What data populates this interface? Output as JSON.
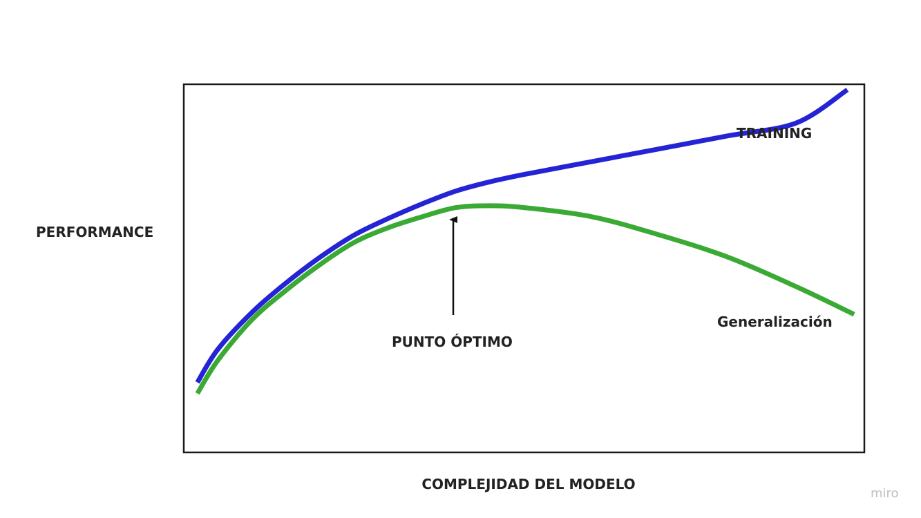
{
  "chart_data": {
    "type": "line",
    "title": "",
    "xlabel": "COMPLEJIDAD DEL MODELO",
    "ylabel": "PERFORMANCE",
    "xlim": [
      0,
      100
    ],
    "ylim": [
      0,
      100
    ],
    "grid": false,
    "legend": "none",
    "series": [
      {
        "name": "TRAINING",
        "color": "#2424d6",
        "x": [
          2,
          5,
          10,
          15,
          20,
          25,
          30,
          35,
          40,
          45,
          50,
          60,
          70,
          80,
          90,
          97.5
        ],
        "y": [
          19,
          28,
          38,
          46,
          53,
          59,
          63.5,
          67.5,
          71,
          73.5,
          75.5,
          79,
          82.5,
          86,
          89.5,
          98.5
        ]
      },
      {
        "name": "Generalización",
        "color": "#3aaa35",
        "x": [
          2,
          5,
          10,
          15,
          20,
          25,
          30,
          35,
          40,
          45,
          50,
          60,
          70,
          80,
          90,
          98.5
        ],
        "y": [
          16,
          25,
          36,
          44,
          51,
          57,
          61,
          64,
          66.5,
          67,
          66.5,
          64,
          59,
          53,
          45,
          37.5
        ]
      }
    ],
    "annotations": [
      {
        "text": "PUNTO ÓPTIMO",
        "x": 39.7,
        "y": 67
      }
    ]
  },
  "watermark": "miro"
}
